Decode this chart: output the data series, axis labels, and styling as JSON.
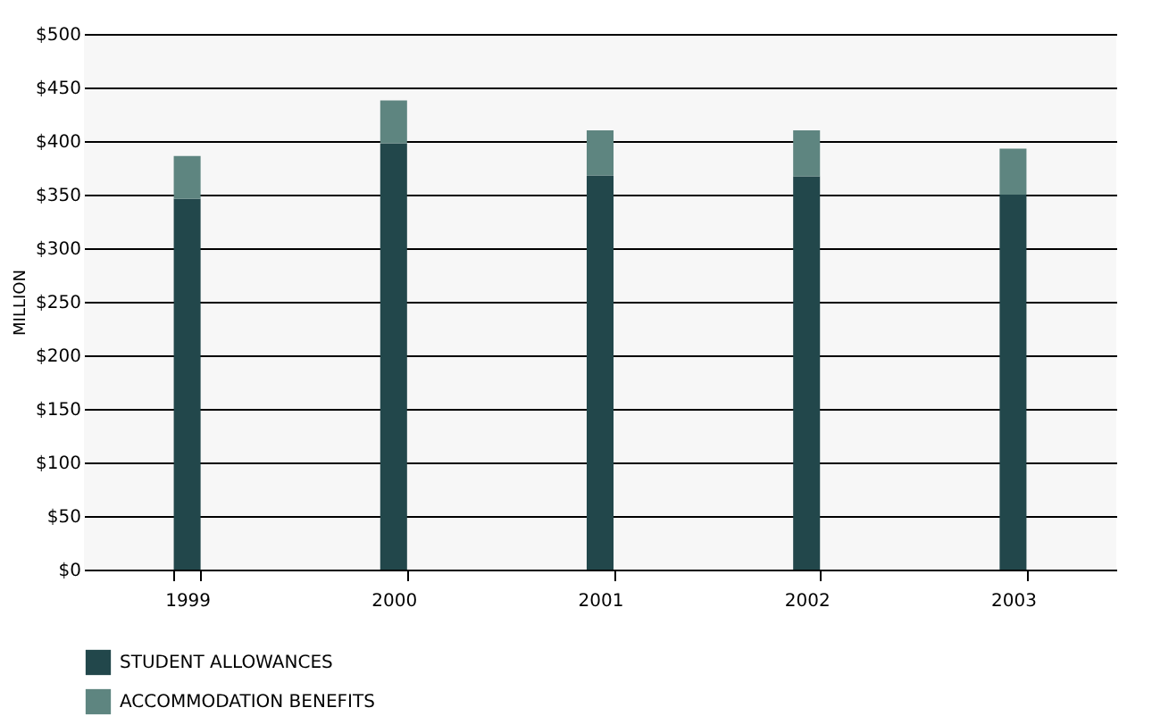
{
  "chart_data": {
    "type": "bar",
    "ylabel": "MILLION",
    "stacked": true,
    "categories": [
      "1999",
      "2000",
      "2001",
      "2002",
      "2003"
    ],
    "series": [
      {
        "name": "STUDENT ALLOWANCES",
        "color": "#22474b",
        "values": [
          346,
          398,
          368,
          367,
          350
        ]
      },
      {
        "name": "ACCOMMODATION BENEFITS",
        "color": "#5e8580",
        "values": [
          40,
          40,
          42,
          43,
          43
        ]
      }
    ],
    "ylim": [
      0,
      500
    ],
    "yticks": [
      {
        "value": 0,
        "label": "$0"
      },
      {
        "value": 50,
        "label": "$50"
      },
      {
        "value": 100,
        "label": "$100"
      },
      {
        "value": 150,
        "label": "$150"
      },
      {
        "value": 200,
        "label": "$200"
      },
      {
        "value": 250,
        "label": "$250"
      },
      {
        "value": 300,
        "label": "$300"
      },
      {
        "value": 350,
        "label": "$350"
      },
      {
        "value": 400,
        "label": "$400"
      },
      {
        "value": 450,
        "label": "$450"
      },
      {
        "value": 500,
        "label": "$500"
      }
    ],
    "grid": "y",
    "legend": "bottom left"
  }
}
